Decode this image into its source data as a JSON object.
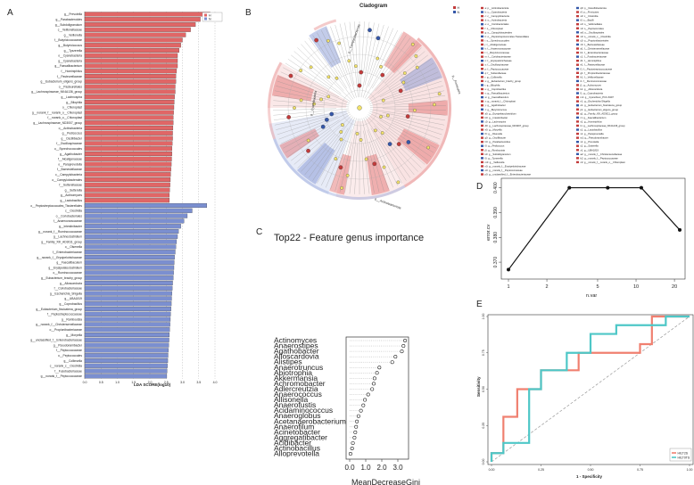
{
  "colors": {
    "red": "#e06666",
    "blue": "#7b8fd0",
    "red_dark": "#c23b3b",
    "blue_dark": "#3557a8",
    "teal": "#4ec7c7",
    "salmon": "#f08070",
    "gray": "#555555"
  },
  "panel_labels": {
    "a": "A",
    "b": "B",
    "c": "C",
    "d": "D",
    "e": "E"
  },
  "panel_a": {
    "xlabel": "LDA SCORE(log10)",
    "ticks": [
      "0.0",
      "0.5",
      "1.0",
      "1.5",
      "2.0",
      "2.5",
      "3.0",
      "3.5",
      "4.0"
    ],
    "legend": [
      "H",
      "N"
    ],
    "red_labels": [
      "g__Prevotella",
      "g__Parabacteroides",
      "g__Subdoligranulum",
      "c__Veillonellaceae",
      "g__Veillonella",
      "f__Butyricicoccaceae",
      "g__Butyricicoccus",
      "g__Tyzzerella",
      "o__Cyanobacteria",
      "g__Cyanobacteria",
      "g__Faecalibacterium",
      "f__Hominiphilus",
      "f__Pasteurellaceae",
      "g__Eubacterium_eligens_group",
      "o__Pasteurellales",
      "g__Lachnospiraceae_NK4A136_group",
      "g__Lachnospira",
      "g__Bilophila",
      "o__Chloroplast",
      "g__norank_f__norank_o__Chloroplast",
      "f__norank_o__Chloroplast",
      "g__Lachnospiraceae_ND3007_group",
      "o__Actinobacteria",
      "g__Pedicoccus",
      "g__Oscillibacter",
      "f__Oscillospiraceae",
      "o__Synechococcales",
      "g__Agathobacter",
      "f__Alcaligenaceae",
      "o__Paraprevotella",
      "f__Barnesiellaceae",
      "c__Campylobacteria",
      "o__Campylobacterales",
      "f__Sutterellaceae",
      "g__Sutterella",
      "g__Actinomyces",
      "g__Lactobacillus"
    ],
    "red_values": [
      3.85,
      3.55,
      3.4,
      3.25,
      3.1,
      3.0,
      2.95,
      2.9,
      2.85,
      2.85,
      2.85,
      2.82,
      2.8,
      2.8,
      2.78,
      2.78,
      2.76,
      2.75,
      2.74,
      2.73,
      2.72,
      2.72,
      2.71,
      2.7,
      2.7,
      2.69,
      2.68,
      2.68,
      2.67,
      2.66,
      2.65,
      2.64,
      2.63,
      2.62,
      2.61,
      2.6,
      2.6
    ],
    "blue_labels": [
      "o__Peptostreptococcales_Tissierellales",
      "c__Clostridia",
      "o__Coriobacteriales",
      "f__Anaerovoracaceae",
      "g__Intestinibacter",
      "g__norank_f__Ruminococcaceae",
      "g__Lachnoclostridium",
      "g__Family_XIII_AD3011_group",
      "o__Olsenella",
      "f__Enterobacteriaceae",
      "g__norank_f__Erysipelotrichaceae",
      "g__Faecalibaculum",
      "g__Erysipelatoclostridium",
      "o__Ruminococcaceae",
      "g__Eubacterium_brachy_group",
      "g__Alloscardovia",
      "f__Coriobacteriaceae",
      "g__Escherichia_Shigella",
      "g__UBA1819",
      "g__Coprobacillus",
      "g__Eubacterium_fissicatena_group",
      "f__Peptostreptococcaceae",
      "g__Romboutsia",
      "g__norank_f__Christensenellaceae",
      "o__Propionibacteriaceae",
      "g__Moryella",
      "g__unclassified_f__Enterobacteriaceae",
      "g__Pseudoramibacter",
      "f__Peptococcaceae",
      "o__Peptococcales",
      "g__Collinsella",
      "c__norank_c__Clostridia",
      "f__Fusobacteriaceae",
      "g__norank_f__Peptococcaceae"
    ],
    "blue_values": [
      3.75,
      3.3,
      3.15,
      3.05,
      2.95,
      2.88,
      2.85,
      2.82,
      2.8,
      2.78,
      2.76,
      2.75,
      2.74,
      2.73,
      2.72,
      2.7,
      2.69,
      2.68,
      2.67,
      2.66,
      2.65,
      2.64,
      2.63,
      2.62,
      2.61,
      2.6,
      2.59,
      2.58,
      2.57,
      2.56,
      2.55,
      2.54,
      2.53,
      2.52
    ]
  },
  "panel_b": {
    "title": "Cladogram",
    "legend": [
      "H",
      "N"
    ],
    "side_labels": [
      "p__Campylobacterota",
      "p__Firmicutes",
      "p__Cyanobacteria",
      "p__Actinobacteriota"
    ],
    "key_col1": [
      "a: p__Actinobacteriota",
      "b: c__Cyanobacteria",
      "c: c__Campylobacteria",
      "d: o__Actinobacteria",
      "e: o__Coriobacteriales",
      "f: o__Chloroplast",
      "g: o__Campylobacterales",
      "h: o__Peptostreptococcales-Tissierellales",
      "i: o__Synechococcales",
      "j: f__Alcaligenaceae",
      "k: f__Anaerovoracaceae",
      "l: f__Butyricicoccaceae",
      "m: f__Coriobacteriaceae",
      "n: f__Erysipelotrichaceae",
      "o: f__Oscillospiraceae",
      "p: f__Peptococcaceae",
      "q: f__Sutterellaceae",
      "r: g__Collinsella",
      "s: g__Eubacterium_brachy_group",
      "t: g__Bilophila",
      "u: g__Coprobacillus",
      "v: g__Faecalibacterium",
      "w: g__Faecalibaculum",
      "x: g__norank_f__Chloroplast",
      "y: g__Agathobacter",
      "z: g__Butyricicoccus",
      "a0: g__Erysipelatoclostridium",
      "b0: g__Intestinibacter",
      "c0: g__Lachnospira",
      "d0: g__Lachnospiraceae_ND3007_group",
      "e0: g__Moryella",
      "f0: g__Olsenella",
      "g0: g__Oscillibacter",
      "h0: g__Parabacteroides",
      "i0: g__Pedicoccus",
      "j0: g__Romboutsia",
      "k0: g__Subdoligranulum",
      "l0: g__Tyzzerella",
      "m0: g__Veillonella",
      "n0: g__norank_f__Erysipelotrichaceae",
      "o0: g__norank_f__Peptococcaceae",
      "p0: g__unclassified_f__Enterobacteriaceae"
    ],
    "key_col2": [
      "q0: p__Desulfobacterota",
      "r0: p__Firmicutes",
      "s0: c__Clostridia",
      "t0: c__Bacilli",
      "u0: o__Veillonellales",
      "v0: o__Peptococcales",
      "w0: o__Oscillospirales",
      "x0: o__norank_c__Clostridia",
      "y0: o__Propionibacteriales",
      "z0: f__Barnesiellaceae",
      "a1: f__Christensenellaceae",
      "b1: f__Enterobacteriaceae",
      "c1: f__Fusobacteriaceae",
      "d1: f__Hominiphilus",
      "e1: f__Pasteurellaceae",
      "f1: f__Peptostreptococcaceae",
      "g1: f__Propionibacteriaceae",
      "h1: f__Veillonellaceae",
      "i1: f__Ruminococcaceae",
      "j1: g__Actinomyces",
      "k1: g__Alloscardovia",
      "l1: g__Cyanobacteria",
      "m1: g__Cyanobium_PCC-6307",
      "n1: g__Escherichia-Shigella",
      "o1: g__Eubacterium_fissicatena_group",
      "p1: g__Eubacterium_eligens_group",
      "q1: g__Family_XIII_AD3011_group",
      "r1: g__Faecalibacterium",
      "s1: g__Hominiphilus",
      "t1: g__Lachnospiraceae_NK4A136_group",
      "u1: g__Lactobacillus",
      "v1: g__Paraprevotella",
      "w1: g__Pseudoramibacter",
      "x1: g__Prevotella",
      "y1: g__Sutterella",
      "z1: g__UBA1819",
      "a2: g__norank_f__Christensenellaceae",
      "b2: g__norank_f__Peptococcaceae",
      "c2: g__norank_f__norank_o__Chloroplast"
    ]
  },
  "chart_data": [
    {
      "type": "bar",
      "panel": "A",
      "title": "",
      "xlabel": "LDA SCORE(log10)",
      "xlim": [
        0,
        4.2
      ],
      "series": [
        {
          "name": "H",
          "source": "panel_a.red_values"
        },
        {
          "name": "N",
          "source": "panel_a.blue_values"
        }
      ]
    },
    {
      "type": "scatter",
      "panel": "C",
      "title": "Top22 - Feature genus importance",
      "xlabel": "MeanDecreaseGini",
      "xticks": [
        "0.0",
        "1.0",
        "2.0",
        "3.0"
      ],
      "xlim": [
        0,
        3.5
      ],
      "categories": [
        "Actinomyces",
        "Anaerostipes",
        "Agathobacter",
        "Alloscardovia",
        "Alistipes",
        "Anaerotruncus",
        "Abiotrophia",
        "Akkermansia",
        "Achromobacter",
        "Adlercreutzia",
        "Anaerococcus",
        "Allisonella",
        "Anaerofustis",
        "Acidaminococcus",
        "Anaeroglobus",
        "Acetanaerobacterium",
        "Anaerofilum",
        "Acinetobacter",
        "Aggregatibacter",
        "Acidibacter",
        "Actinobacillus",
        "Alloprevotella"
      ],
      "values": [
        3.45,
        3.35,
        3.25,
        2.85,
        2.65,
        1.85,
        1.7,
        1.55,
        1.5,
        1.4,
        1.15,
        0.95,
        0.85,
        0.7,
        0.55,
        0.45,
        0.4,
        0.35,
        0.3,
        0.2,
        0.15,
        0.05
      ]
    },
    {
      "type": "line",
      "panel": "D",
      "xlabel": "n.var",
      "ylabel": "error.cv",
      "x": [
        1,
        3,
        6,
        11,
        22
      ],
      "y": [
        0.367,
        0.4,
        0.4,
        0.4,
        0.383
      ],
      "xticks": [
        "1",
        "2",
        "5",
        "10",
        "20"
      ],
      "yticks": [
        "0.370",
        "0.380",
        "0.390",
        "0.400"
      ],
      "ylim": [
        0.365,
        0.402
      ]
    },
    {
      "type": "line",
      "panel": "E",
      "xlabel": "1 - Specificity",
      "ylabel": "Sensitivity",
      "xticks": [
        "0.00",
        "0.25",
        "0.50",
        "0.75",
        "1.00"
      ],
      "yticks": [
        "0.00",
        "0.25",
        "0.50",
        "0.75",
        "1.00"
      ],
      "series": [
        {
          "name": "HILT2S",
          "color": "#f08070",
          "x": [
            0,
            0,
            0.06,
            0.06,
            0.13,
            0.13,
            0.25,
            0.25,
            0.44,
            0.44,
            0.75,
            0.75,
            0.81,
            0.81,
            1
          ],
          "y": [
            0,
            0.06,
            0.06,
            0.31,
            0.31,
            0.5,
            0.5,
            0.63,
            0.63,
            0.75,
            0.75,
            0.81,
            0.81,
            1,
            1
          ]
        },
        {
          "name": "HILT0TS",
          "color": "#4ec7c7",
          "x": [
            0,
            0,
            0.06,
            0.06,
            0.19,
            0.19,
            0.25,
            0.25,
            0.38,
            0.38,
            0.5,
            0.5,
            0.63,
            0.63,
            0.88,
            0.88,
            1
          ],
          "y": [
            0,
            0.06,
            0.06,
            0.13,
            0.13,
            0.5,
            0.5,
            0.63,
            0.63,
            0.75,
            0.75,
            0.88,
            0.88,
            0.94,
            0.94,
            1,
            1
          ]
        }
      ]
    }
  ]
}
